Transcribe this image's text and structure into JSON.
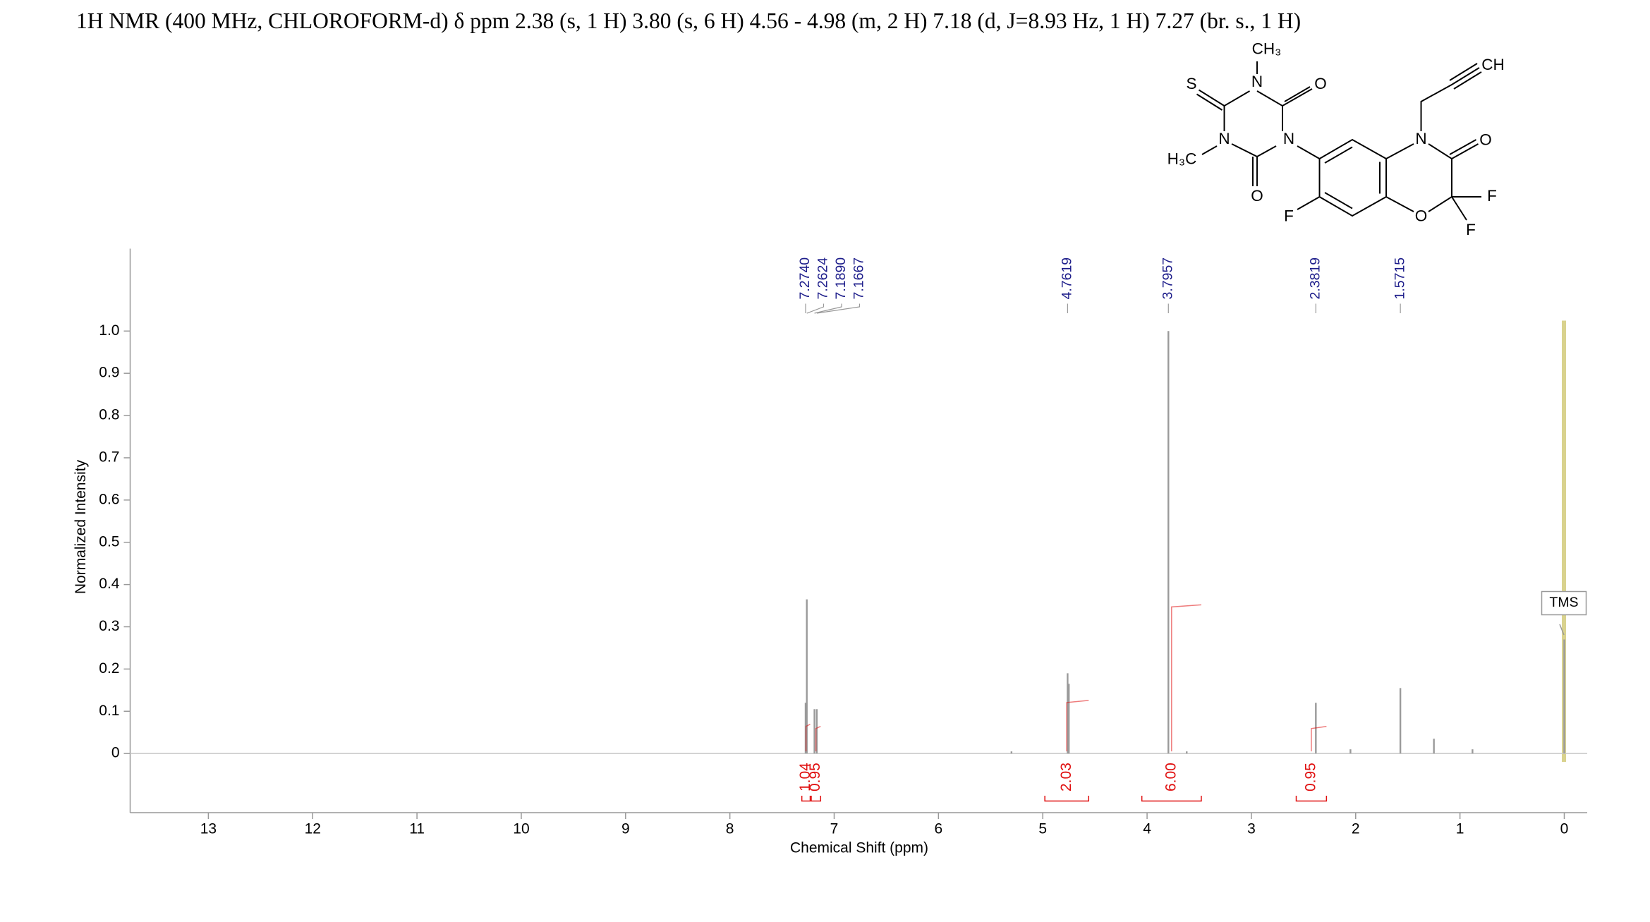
{
  "chart_data": {
    "type": "nmr",
    "title": "1H NMR (400 MHz, CHLOROFORM-d) δ ppm 2.38 (s, 1 H) 3.80 (s, 6 H) 4.56 - 4.98 (m, 2 H) 7.18 (d,  J=8.93 Hz, 1 H) 7.27 (br. s., 1 H)",
    "x_label": "Chemical Shift (ppm)",
    "y_label": "Normalized Intensity",
    "xlim": [
      13.75,
      -0.22
    ],
    "ylim": [
      -0.14,
      1.195
    ],
    "xticks": [
      13,
      12,
      11,
      10,
      9,
      8,
      7,
      6,
      5,
      4,
      3,
      2,
      1,
      0
    ],
    "yticks": [
      0,
      0.1,
      0.2,
      0.3,
      0.4,
      0.5,
      0.6,
      0.7,
      0.8,
      0.9,
      {
        "value": 1,
        "label": "1.0"
      }
    ],
    "x": [
      7.274,
      7.2624,
      7.189,
      7.1667,
      5.3,
      4.7619,
      4.75,
      3.7957,
      3.62,
      2.3819,
      2.05,
      1.5715,
      1.25,
      0.88,
      0
    ],
    "values": [
      0.12,
      0.365,
      0.105,
      0.105,
      0.005,
      0.19,
      0.165,
      1,
      0.005,
      0.12,
      0.01,
      0.155,
      0.035,
      0.01,
      0.27
    ],
    "color": "#9a9a9a",
    "peak_labels": [
      {
        "value": 7.274,
        "label": "7.2740"
      },
      {
        "value": 7.2624,
        "label": "7.2624"
      },
      {
        "value": 7.189,
        "label": "7.1890"
      },
      {
        "value": 7.1667,
        "label": "7.1667"
      },
      {
        "value": 4.7619,
        "label": "4.7619"
      },
      {
        "value": 3.7957,
        "label": "3.7957"
      },
      {
        "value": 2.3819,
        "label": "2.3819"
      },
      {
        "value": 1.5715,
        "label": "1.5715"
      }
    ],
    "peak_label_color": "#1c1c8a",
    "integrals": {
      "values": [
        1.04,
        0.95,
        2.03,
        6,
        0.95
      ],
      "value_labels": [
        "1.04",
        "0.95",
        "2.03",
        "6.00",
        "0.95"
      ],
      "ranges": [
        [
          7.31,
          7.23
        ],
        [
          7.22,
          7.13
        ],
        [
          4.98,
          4.56
        ],
        [
          4.05,
          3.48
        ],
        [
          2.57,
          2.28
        ]
      ],
      "color": "#e01010"
    },
    "annotation": "TMS"
  },
  "structure": {
    "atoms": [
      "CH₃",
      "N",
      "S",
      "O",
      "N",
      "N",
      "H₃C",
      "O",
      "F",
      "N",
      "O",
      "O",
      "F",
      "F",
      "CH"
    ]
  }
}
